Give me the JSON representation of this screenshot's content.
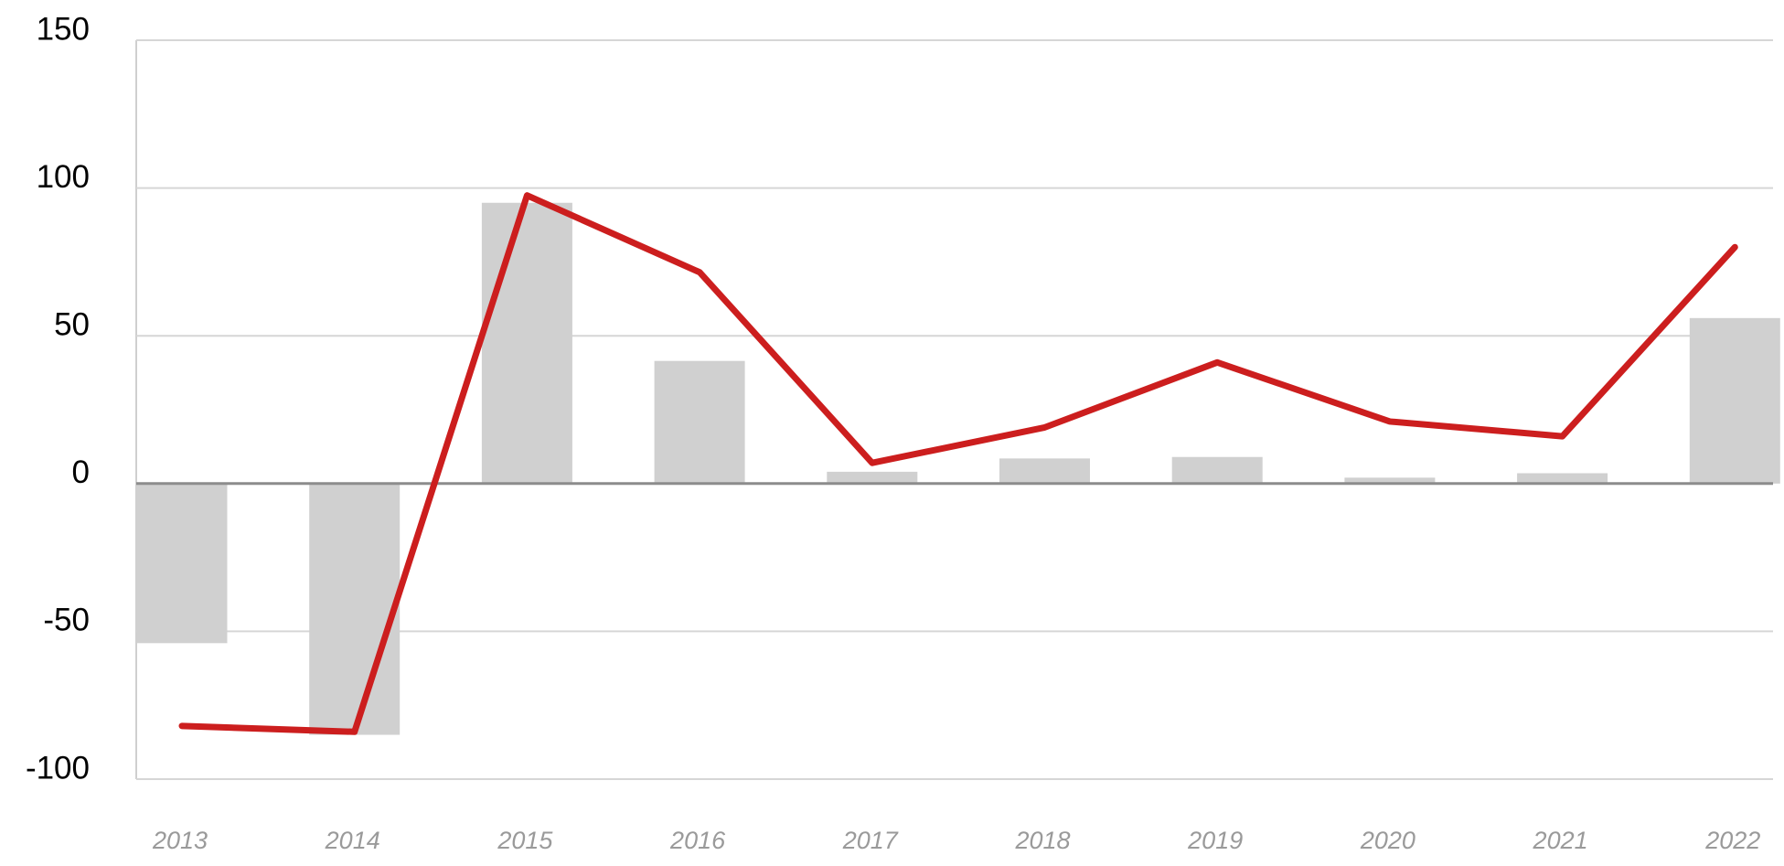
{
  "chart_data": {
    "type": "bar",
    "categories": [
      "2013",
      "2014",
      "2015",
      "2016",
      "2017",
      "2018",
      "2019",
      "2020",
      "2021",
      "2022"
    ],
    "series": [
      {
        "type": "bar",
        "color": "#d0d0d0",
        "values": [
          -54,
          -85,
          95,
          41.5,
          4,
          8.5,
          9,
          2,
          3.5,
          56
        ]
      },
      {
        "type": "line",
        "color": "#cc1e1e",
        "values": [
          -82,
          -84,
          97.5,
          71.5,
          7,
          19,
          41,
          21,
          16,
          80
        ]
      }
    ],
    "ylim": [
      -100,
      150
    ],
    "yticks": [
      -100,
      -50,
      0,
      50,
      100,
      150
    ],
    "grid": true
  }
}
